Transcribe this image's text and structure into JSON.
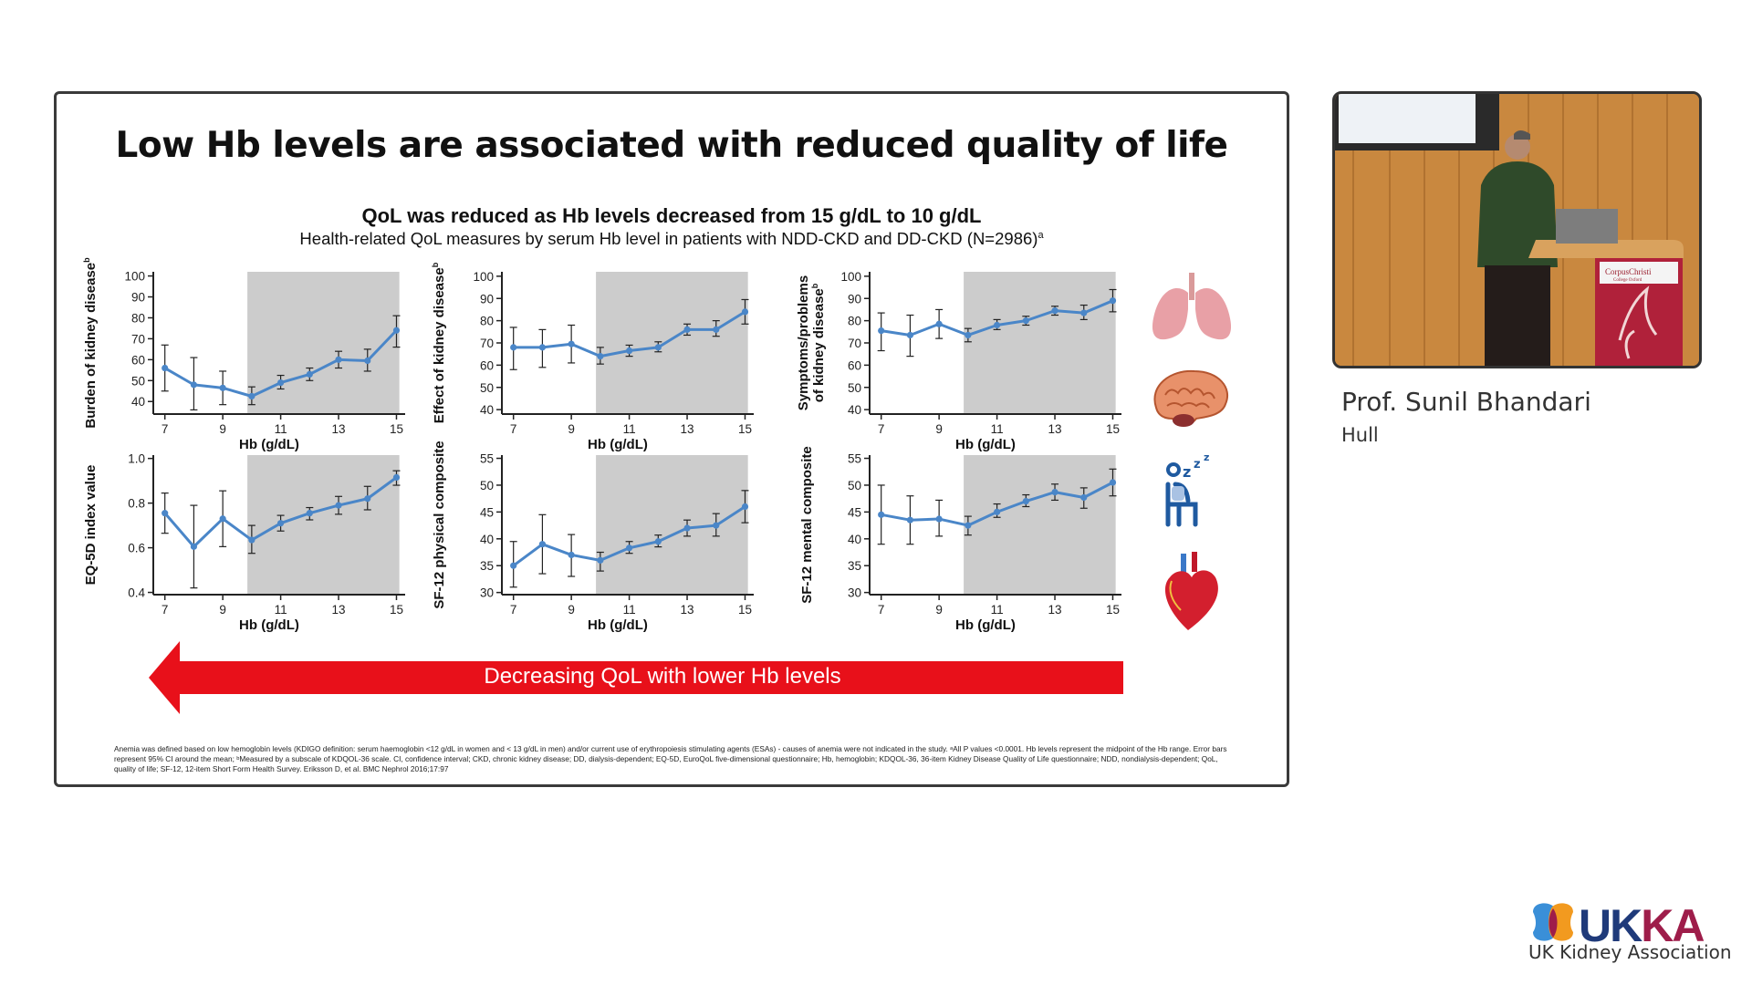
{
  "slide": {
    "title": "Low Hb levels are associated with reduced quality of life",
    "subtitle": "QoL was reduced as Hb levels decreased from 15 g/dL to 10 g/dL",
    "caption": "Health-related QoL measures by serum Hb level in patients with NDD-CKD and DD-CKD (N=2986)",
    "caption_sup": "a",
    "arrow_label": "Decreasing QoL with lower Hb levels",
    "arrow_color": "#e8101a",
    "footnote": "Anemia was defined based on low hemoglobin levels (KDIGO definition: serum haemoglobin <12 g/dL in women and < 13 g/dL in men) and/or current use of erythropoiesis stimulating agents (ESAs) - causes of anemia were not indicated in the study. ᵃAll P values <0.0001. Hb levels represent the midpoint of the Hb range. Error bars represent 95% CI around the mean; ᵇMeasured by a subscale of KDQOL-36 scale. CI, confidence interval; CKD, chronic kidney disease; DD, dialysis-dependent; EQ-5D, EuroQoL five-dimensional questionnaire; Hb, hemoglobin; KDQOL-36, 36-item Kidney Disease Quality of Life questionnaire; NDD, nondialysis-dependent; QoL, quality of life; SF-12, 12-item Short Form Health Survey. Eriksson D, et al. BMC Nephrol 2016;17:97",
    "icons": [
      "lungs-icon",
      "brain-icon",
      "sleeping-person-icon",
      "heart-icon"
    ]
  },
  "chart_data": [
    {
      "type": "line",
      "ylabel": [
        "Burden of kidney disease"
      ],
      "ylabel_sup": "b",
      "xlabel": "Hb (g/dL)",
      "xticks": [
        7,
        9,
        11,
        13,
        15
      ],
      "yticks": [
        40,
        50,
        60,
        70,
        80,
        90,
        100
      ],
      "ylim": [
        34,
        102
      ],
      "xlim": [
        6.6,
        15.3
      ],
      "shaded_x": [
        9.85,
        15.1
      ],
      "x": [
        7,
        8,
        9,
        10,
        11,
        12,
        13,
        14,
        15
      ],
      "y": [
        56,
        48,
        46.5,
        42.5,
        49,
        53,
        60,
        59.5,
        74
      ],
      "lo": [
        45,
        36,
        38.5,
        38.5,
        46,
        50,
        56,
        54.5,
        66
      ],
      "hi": [
        67,
        61,
        54.5,
        47,
        52.5,
        56,
        64,
        65,
        81
      ],
      "color": "#4a86c8"
    },
    {
      "type": "line",
      "ylabel": [
        "Effect of kidney disease"
      ],
      "ylabel_sup": "b",
      "xlabel": "Hb (g/dL)",
      "xticks": [
        7,
        9,
        11,
        13,
        15
      ],
      "yticks": [
        40,
        50,
        60,
        70,
        80,
        90,
        100
      ],
      "ylim": [
        38,
        102
      ],
      "xlim": [
        6.6,
        15.3
      ],
      "shaded_x": [
        9.85,
        15.1
      ],
      "x": [
        7,
        8,
        9,
        10,
        11,
        12,
        13,
        14,
        15
      ],
      "y": [
        68,
        68,
        69.5,
        64,
        66.5,
        68,
        76,
        76,
        84
      ],
      "lo": [
        58,
        59,
        61,
        60.5,
        64,
        66,
        73.5,
        73,
        78.5
      ],
      "hi": [
        77,
        76,
        78,
        68,
        69,
        70.5,
        78.5,
        80,
        89.5
      ],
      "color": "#4a86c8"
    },
    {
      "type": "line",
      "ylabel": [
        "Symptoms/problems",
        "of kidney disease"
      ],
      "ylabel_sup": "b",
      "xlabel": "Hb (g/dL)",
      "xticks": [
        7,
        9,
        11,
        13,
        15
      ],
      "yticks": [
        40,
        50,
        60,
        70,
        80,
        90,
        100
      ],
      "ylim": [
        38,
        102
      ],
      "xlim": [
        6.6,
        15.3
      ],
      "shaded_x": [
        9.85,
        15.1
      ],
      "x": [
        7,
        8,
        9,
        10,
        11,
        12,
        13,
        14,
        15
      ],
      "y": [
        75.5,
        73.5,
        78.5,
        73.5,
        78,
        80,
        84.5,
        83.5,
        89
      ],
      "lo": [
        66.5,
        64,
        72,
        70.5,
        76,
        78,
        82.5,
        80.5,
        84
      ],
      "hi": [
        83.5,
        82.5,
        85,
        76.5,
        80.5,
        82,
        86.5,
        87,
        94
      ],
      "color": "#4a86c8"
    },
    {
      "type": "line",
      "ylabel": [
        "EQ-5D index value"
      ],
      "ylabel_sup": "",
      "xlabel": "Hb (g/dL)",
      "xticks": [
        7,
        9,
        11,
        13,
        15
      ],
      "yticks": [
        0.4,
        0.6,
        0.8,
        1.0
      ],
      "ylim": [
        0.39,
        1.015
      ],
      "xlim": [
        6.6,
        15.3
      ],
      "shaded_x": [
        9.85,
        15.1
      ],
      "x": [
        7,
        8,
        9,
        10,
        11,
        12,
        13,
        14,
        15
      ],
      "y": [
        0.755,
        0.605,
        0.73,
        0.635,
        0.71,
        0.755,
        0.79,
        0.82,
        0.915
      ],
      "lo": [
        0.665,
        0.42,
        0.605,
        0.575,
        0.675,
        0.725,
        0.75,
        0.77,
        0.88
      ],
      "hi": [
        0.845,
        0.79,
        0.855,
        0.7,
        0.745,
        0.78,
        0.83,
        0.875,
        0.945
      ],
      "color": "#4a86c8"
    },
    {
      "type": "line",
      "ylabel": [
        "SF-12 physical composite"
      ],
      "ylabel_sup": "",
      "xlabel": "Hb (g/dL)",
      "xticks": [
        7,
        9,
        11,
        13,
        15
      ],
      "yticks": [
        30,
        35,
        40,
        45,
        50,
        55
      ],
      "ylim": [
        29.6,
        55.6
      ],
      "xlim": [
        6.6,
        15.3
      ],
      "shaded_x": [
        9.85,
        15.1
      ],
      "x": [
        7,
        8,
        9,
        10,
        11,
        12,
        13,
        14,
        15
      ],
      "y": [
        35,
        39,
        37,
        36,
        38.3,
        39.5,
        42,
        42.5,
        46
      ],
      "lo": [
        31,
        33.5,
        33,
        34,
        37.3,
        38.5,
        40.5,
        40.5,
        43
      ],
      "hi": [
        39.5,
        44.5,
        40.8,
        37.5,
        39.5,
        40.7,
        43.5,
        44.7,
        49
      ],
      "color": "#4a86c8"
    },
    {
      "type": "line",
      "ylabel": [
        "SF-12 mental composite"
      ],
      "ylabel_sup": "",
      "xlabel": "Hb (g/dL)",
      "xticks": [
        7,
        9,
        11,
        13,
        15
      ],
      "yticks": [
        30,
        35,
        40,
        45,
        50,
        55
      ],
      "ylim": [
        29.6,
        55.6
      ],
      "xlim": [
        6.6,
        15.3
      ],
      "shaded_x": [
        9.85,
        15.1
      ],
      "x": [
        7,
        8,
        9,
        10,
        11,
        12,
        13,
        14,
        15
      ],
      "y": [
        44.5,
        43.5,
        43.7,
        42.5,
        45,
        47,
        48.7,
        47.7,
        50.5
      ],
      "lo": [
        39,
        39,
        40.5,
        40.7,
        44,
        46,
        47.2,
        45.7,
        48
      ],
      "hi": [
        50,
        48,
        47.2,
        44.2,
        46.5,
        48.2,
        50.2,
        49.5,
        53
      ],
      "color": "#4a86c8"
    }
  ],
  "speaker": {
    "name": "Prof. Sunil Bhandari",
    "affiliation": "Hull",
    "podium_sign": "CorpusChristi",
    "podium_sign_sub": "College Oxford"
  },
  "logo": {
    "wordmark": "UKKA",
    "tagline": "UK Kidney Association",
    "colors": {
      "navy": "#1f3a7a",
      "maroon": "#9e1d4a",
      "blue": "#3a8fd8",
      "orange": "#f29a1f"
    }
  }
}
